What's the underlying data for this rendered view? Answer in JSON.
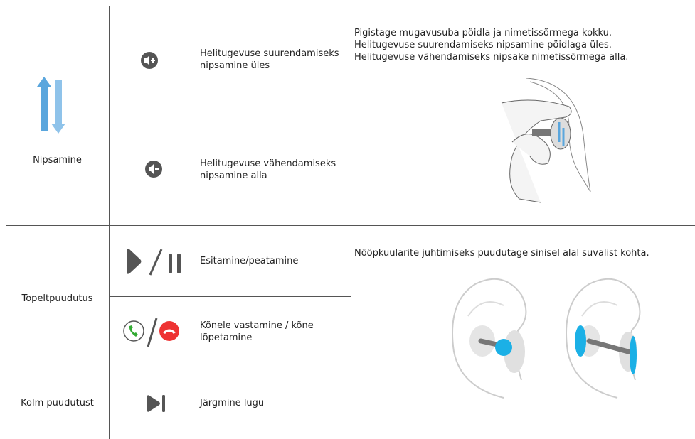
{
  "rows": [
    {
      "gesture": "Nipsamine",
      "actions": [
        "Helitugevuse suurendamiseks nipsamine üles",
        "Helitugevuse vähendamiseks nipsamine alla"
      ],
      "description": [
        "Pigistage mugavusuba pöidla ja nimetissõrmega kokku.",
        "Helitugevuse suurendamiseks nipsamine pöidlaga üles.",
        "Helitugevuse vähendamiseks nipsake nimetissõrmega alla."
      ]
    },
    {
      "gesture": "Topeltpuudutus",
      "actions": [
        "Esitamine/peatamine",
        "Kõnele vastamine / kõne lõpetamine"
      ],
      "description": [
        "Nööpkuularite juhtimiseks puudutage sinisel alal suvalist kohta."
      ]
    },
    {
      "gesture": "Kolm puudutust",
      "actions": [
        "Järgmine lugu"
      ]
    }
  ]
}
